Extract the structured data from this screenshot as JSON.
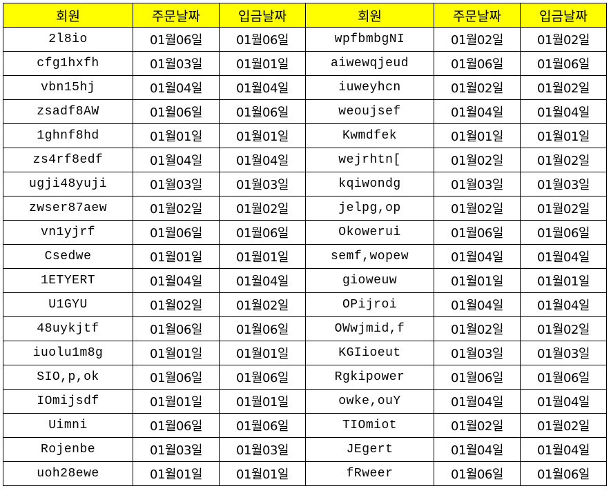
{
  "header": {
    "accent": "#ffff00",
    "columns": [
      "회원",
      "주문날짜",
      "입금날짜",
      "회원",
      "주문날짜",
      "입금날짜"
    ]
  },
  "rows": [
    [
      "2l8io",
      "01월06일",
      "01월06일",
      "wpfbmbgNI",
      "01월02일",
      "01월02일"
    ],
    [
      "cfg1hxfh",
      "01월03일",
      "01월01일",
      "aiwewqjeud",
      "01월06일",
      "01월06일"
    ],
    [
      "vbn15hj",
      "01월04일",
      "01월04일",
      "iuweyhcn",
      "01월02일",
      "01월02일"
    ],
    [
      "zsadf8AW",
      "01월06일",
      "01월06일",
      "weoujsef",
      "01월04일",
      "01월04일"
    ],
    [
      "1ghnf8hd",
      "01월01일",
      "01월01일",
      "Kwmdfek",
      "01월01일",
      "01월01일"
    ],
    [
      "zs4rf8edf",
      "01월04일",
      "01월04일",
      "wejrhtn[",
      "01월02일",
      "01월02일"
    ],
    [
      "ugji48yuji",
      "01월03일",
      "01월03일",
      "kqiwondg",
      "01월03일",
      "01월03일"
    ],
    [
      "zwser87aew",
      "01월02일",
      "01월02일",
      "jelpg,op",
      "01월02일",
      "01월02일"
    ],
    [
      "vn1yjrf",
      "01월06일",
      "01월06일",
      "Okowerui",
      "01월06일",
      "01월06일"
    ],
    [
      "Csedwe",
      "01월01일",
      "01월01일",
      "semf,wopew",
      "01월04일",
      "01월04일"
    ],
    [
      "1ETYERT",
      "01월04일",
      "01월04일",
      "gioweuw",
      "01월01일",
      "01월01일"
    ],
    [
      "U1GYU",
      "01월02일",
      "01월02일",
      "OPijroi",
      "01월04일",
      "01월04일"
    ],
    [
      "48uykjtf",
      "01월06일",
      "01월06일",
      "OWwjmid,f",
      "01월02일",
      "01월02일"
    ],
    [
      "iuolu1m8g",
      "01월01일",
      "01월01일",
      "KGIioeut",
      "01월03일",
      "01월03일"
    ],
    [
      "SIO,p,ok",
      "01월06일",
      "01월06일",
      "Rgkipower",
      "01월06일",
      "01월06일"
    ],
    [
      "IOmijsdf",
      "01월01일",
      "01월01일",
      "owke,ouY",
      "01월04일",
      "01월04일"
    ],
    [
      "Uimni",
      "01월06일",
      "01월06일",
      "TIOmiot",
      "01월02일",
      "01월02일"
    ],
    [
      "Rojenbe",
      "01월03일",
      "01월03일",
      "JEgert",
      "01월04일",
      "01월04일"
    ],
    [
      "uoh28ewe",
      "01월01일",
      "01월01일",
      "fRweer",
      "01월06일",
      "01월06일"
    ]
  ]
}
